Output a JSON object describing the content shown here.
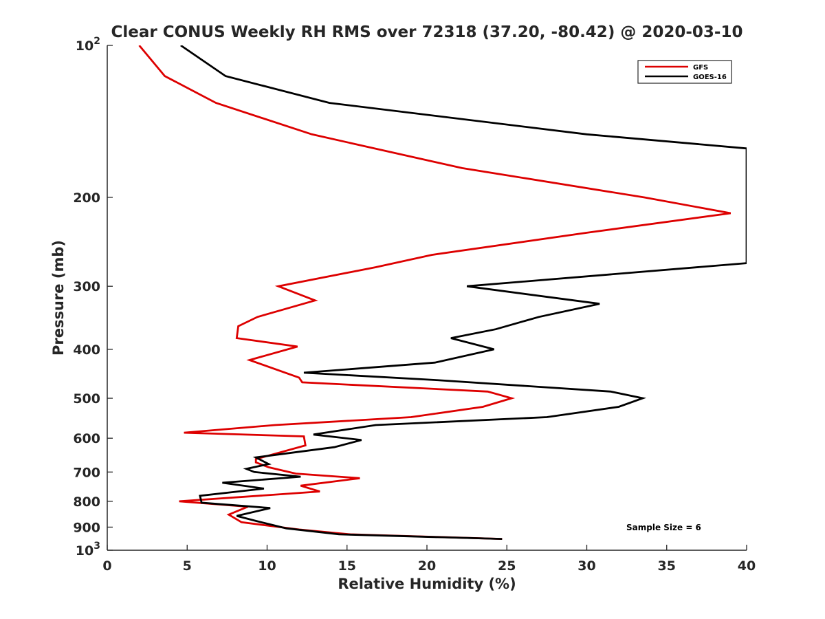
{
  "chart_data": {
    "type": "line",
    "title": "Clear CONUS Weekly RH RMS over 72318 (37.20, -80.42) @ 2020-03-10",
    "xlabel": "Relative Humidity (%)",
    "ylabel": "Pressure (mb)",
    "xlim": [
      0,
      40
    ],
    "ylim": [
      100,
      1000
    ],
    "yscale": "log",
    "y_reversed": true,
    "grid": false,
    "legend_position": "top-right",
    "x_ticks": [
      {
        "value": 0,
        "label": "0"
      },
      {
        "value": 5,
        "label": "5"
      },
      {
        "value": 10,
        "label": "10"
      },
      {
        "value": 15,
        "label": "15"
      },
      {
        "value": 20,
        "label": "20"
      },
      {
        "value": 25,
        "label": "25"
      },
      {
        "value": 30,
        "label": "30"
      },
      {
        "value": 35,
        "label": "35"
      },
      {
        "value": 40,
        "label": "40"
      }
    ],
    "y_ticks": [
      {
        "value": 100,
        "base": "10",
        "exp": "2"
      },
      {
        "value": 200,
        "label": "200"
      },
      {
        "value": 300,
        "label": "300"
      },
      {
        "value": 400,
        "label": "400"
      },
      {
        "value": 500,
        "label": "500"
      },
      {
        "value": 600,
        "label": "600"
      },
      {
        "value": 700,
        "label": "700"
      },
      {
        "value": 800,
        "label": "800"
      },
      {
        "value": 900,
        "label": "900"
      },
      {
        "value": 1000,
        "base": "10",
        "exp": "3"
      }
    ],
    "annotation": "Sample Size = 6",
    "series": [
      {
        "name": "GFS",
        "color": "#dd0000",
        "points": [
          [
            2.0,
            100
          ],
          [
            3.6,
            115
          ],
          [
            6.8,
            130
          ],
          [
            12.8,
            150
          ],
          [
            22.2,
            175
          ],
          [
            33.6,
            200
          ],
          [
            39.0,
            215
          ],
          [
            30.0,
            235
          ],
          [
            20.3,
            260
          ],
          [
            16.8,
            275
          ],
          [
            10.7,
            300
          ],
          [
            13.0,
            320
          ],
          [
            9.4,
            345
          ],
          [
            8.2,
            360
          ],
          [
            8.1,
            380
          ],
          [
            11.9,
            395
          ],
          [
            8.9,
            420
          ],
          [
            12.0,
            455
          ],
          [
            12.2,
            465
          ],
          [
            23.8,
            485
          ],
          [
            25.3,
            500
          ],
          [
            23.5,
            520
          ],
          [
            19.0,
            545
          ],
          [
            10.5,
            565
          ],
          [
            4.8,
            585
          ],
          [
            12.3,
            595
          ],
          [
            12.4,
            620
          ],
          [
            9.3,
            660
          ],
          [
            9.3,
            670
          ],
          [
            10.1,
            685
          ],
          [
            11.8,
            705
          ],
          [
            15.8,
            720
          ],
          [
            12.1,
            745
          ],
          [
            13.3,
            765
          ],
          [
            4.5,
            800
          ],
          [
            8.8,
            820
          ],
          [
            7.6,
            850
          ],
          [
            8.4,
            880
          ],
          [
            12.0,
            910
          ],
          [
            15.2,
            930
          ],
          [
            24.7,
            950
          ]
        ]
      },
      {
        "name": "GOES-16",
        "color": "#000000",
        "points": [
          [
            4.6,
            100
          ],
          [
            7.4,
            115
          ],
          [
            13.9,
            130
          ],
          [
            30.0,
            150
          ],
          [
            40.0,
            160
          ],
          [
            40.0,
            270
          ],
          [
            22.5,
            300
          ],
          [
            30.8,
            325
          ],
          [
            27.0,
            345
          ],
          [
            24.3,
            365
          ],
          [
            21.5,
            380
          ],
          [
            24.2,
            400
          ],
          [
            20.5,
            425
          ],
          [
            12.3,
            445
          ],
          [
            20.5,
            460
          ],
          [
            31.5,
            485
          ],
          [
            33.5,
            500
          ],
          [
            32.0,
            520
          ],
          [
            27.5,
            545
          ],
          [
            16.8,
            565
          ],
          [
            12.9,
            590
          ],
          [
            15.9,
            605
          ],
          [
            14.2,
            625
          ],
          [
            9.3,
            655
          ],
          [
            10.1,
            675
          ],
          [
            8.7,
            690
          ],
          [
            9.2,
            700
          ],
          [
            12.1,
            715
          ],
          [
            7.2,
            735
          ],
          [
            9.8,
            755
          ],
          [
            5.8,
            780
          ],
          [
            5.9,
            805
          ],
          [
            10.2,
            825
          ],
          [
            8.1,
            855
          ],
          [
            9.3,
            875
          ],
          [
            11.2,
            905
          ],
          [
            14.5,
            930
          ],
          [
            24.7,
            950
          ]
        ]
      }
    ]
  }
}
